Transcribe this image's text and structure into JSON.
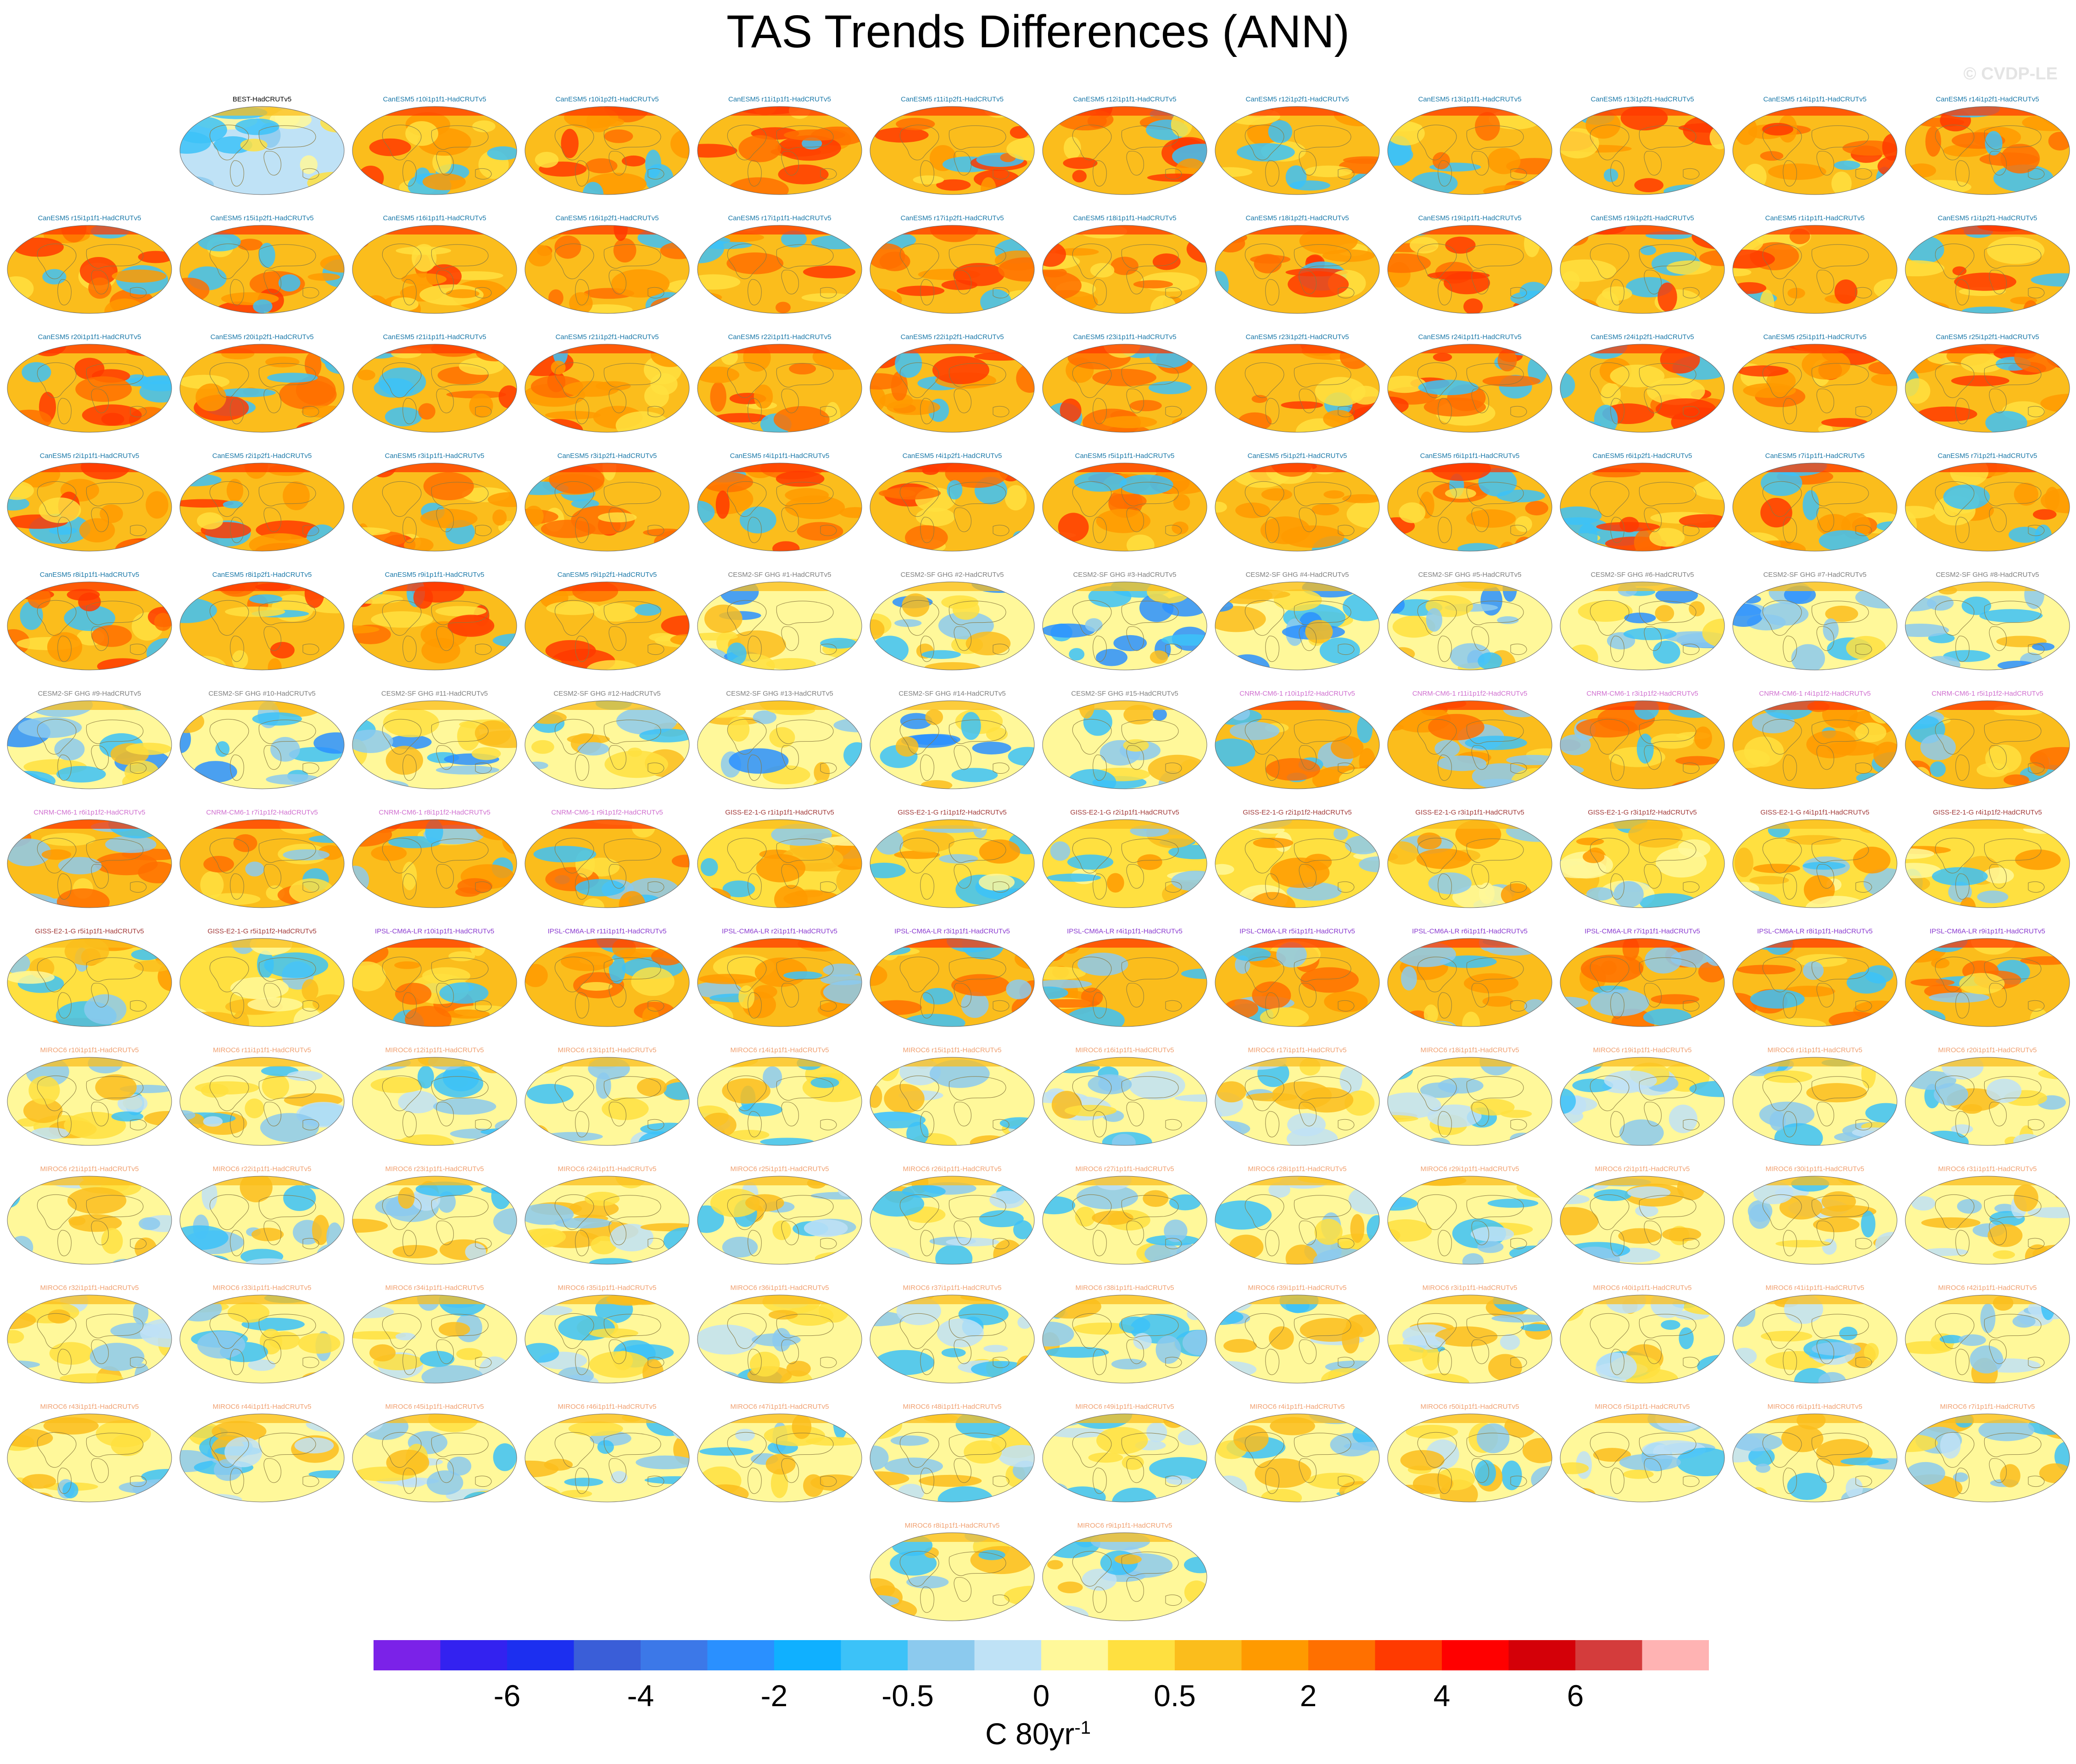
{
  "title": "TAS Trends Differences (ANN)",
  "watermark": "© CVDP-LE",
  "chart_data": {
    "type": "heatmap",
    "description_kind": "small multiples of global map panels",
    "panel_labels": [
      "BEST-HadCRUTv5",
      "CanESM5 r10i1p1f1-HadCRUTv5",
      "CanESM5 r10i1p2f1-HadCRUTv5",
      "CanESM5 r11i1p1f1-HadCRUTv5",
      "CanESM5 r11i1p2f1-HadCRUTv5",
      "CanESM5 r12i1p1f1-HadCRUTv5",
      "CanESM5 r12i1p2f1-HadCRUTv5",
      "CanESM5 r13i1p1f1-HadCRUTv5",
      "CanESM5 r13i1p2f1-HadCRUTv5",
      "CanESM5 r14i1p1f1-HadCRUTv5",
      "CanESM5 r14i1p2f1-HadCRUTv5",
      "CanESM5 r15i1p1f1-HadCRUTv5",
      "CanESM5 r15i1p2f1-HadCRUTv5",
      "CanESM5 r16i1p1f1-HadCRUTv5",
      "CanESM5 r16i1p2f1-HadCRUTv5",
      "CanESM5 r17i1p1f1-HadCRUTv5",
      "CanESM5 r17i1p2f1-HadCRUTv5",
      "CanESM5 r18i1p1f1-HadCRUTv5",
      "CanESM5 r18i1p2f1-HadCRUTv5",
      "CanESM5 r19i1p1f1-HadCRUTv5",
      "CanESM5 r19i1p2f1-HadCRUTv5",
      "CanESM5 r1i1p1f1-HadCRUTv5",
      "CanESM5 r1i1p2f1-HadCRUTv5",
      "CanESM5 r20i1p1f1-HadCRUTv5",
      "CanESM5 r20i1p2f1-HadCRUTv5",
      "CanESM5 r21i1p1f1-HadCRUTv5",
      "CanESM5 r21i1p2f1-HadCRUTv5",
      "CanESM5 r22i1p1f1-HadCRUTv5",
      "CanESM5 r22i1p2f1-HadCRUTv5",
      "CanESM5 r23i1p1f1-HadCRUTv5",
      "CanESM5 r23i1p2f1-HadCRUTv5",
      "CanESM5 r24i1p1f1-HadCRUTv5",
      "CanESM5 r24i1p2f1-HadCRUTv5",
      "CanESM5 r25i1p1f1-HadCRUTv5",
      "CanESM5 r25i1p2f1-HadCRUTv5",
      "CanESM5 r2i1p1f1-HadCRUTv5",
      "CanESM5 r2i1p2f1-HadCRUTv5",
      "CanESM5 r3i1p1f1-HadCRUTv5",
      "CanESM5 r3i1p2f1-HadCRUTv5",
      "CanESM5 r4i1p1f1-HadCRUTv5",
      "CanESM5 r4i1p2f1-HadCRUTv5",
      "CanESM5 r5i1p1f1-HadCRUTv5",
      "CanESM5 r5i1p2f1-HadCRUTv5",
      "CanESM5 r6i1p1f1-HadCRUTv5",
      "CanESM5 r6i1p2f1-HadCRUTv5",
      "CanESM5 r7i1p1f1-HadCRUTv5",
      "CanESM5 r7i1p2f1-HadCRUTv5",
      "CanESM5 r8i1p1f1-HadCRUTv5",
      "CanESM5 r8i1p2f1-HadCRUTv5",
      "CanESM5 r9i1p1f1-HadCRUTv5",
      "CanESM5 r9i1p2f1-HadCRUTv5",
      "CESM2-SF GHG #1-HadCRUTv5",
      "CESM2-SF GHG #2-HadCRUTv5",
      "CESM2-SF GHG #3-HadCRUTv5",
      "CESM2-SF GHG #4-HadCRUTv5",
      "CESM2-SF GHG #5-HadCRUTv5",
      "CESM2-SF GHG #6-HadCRUTv5",
      "CESM2-SF GHG #7-HadCRUTv5",
      "CESM2-SF GHG #8-HadCRUTv5",
      "CESM2-SF GHG #9-HadCRUTv5",
      "CESM2-SF GHG #10-HadCRUTv5",
      "CESM2-SF GHG #11-HadCRUTv5",
      "CESM2-SF GHG #12-HadCRUTv5",
      "CESM2-SF GHG #13-HadCRUTv5",
      "CESM2-SF GHG #14-HadCRUTv5",
      "CESM2-SF GHG #15-HadCRUTv5",
      "CNRM-CM6-1 r10i1p1f2-HadCRUTv5",
      "CNRM-CM6-1 r11i1p1f2-HadCRUTv5",
      "CNRM-CM6-1 r3i1p1f2-HadCRUTv5",
      "CNRM-CM6-1 r4i1p1f2-HadCRUTv5",
      "CNRM-CM6-1 r5i1p1f2-HadCRUTv5",
      "CNRM-CM6-1 r6i1p1f2-HadCRUTv5",
      "CNRM-CM6-1 r7i1p1f2-HadCRUTv5",
      "CNRM-CM6-1 r8i1p1f2-HadCRUTv5",
      "CNRM-CM6-1 r9i1p1f2-HadCRUTv5",
      "GISS-E2-1-G r1i1p1f1-HadCRUTv5",
      "GISS-E2-1-G r1i1p1f2-HadCRUTv5",
      "GISS-E2-1-G r2i1p1f1-HadCRUTv5",
      "GISS-E2-1-G r2i1p1f2-HadCRUTv5",
      "GISS-E2-1-G r3i1p1f1-HadCRUTv5",
      "GISS-E2-1-G r3i1p1f2-HadCRUTv5",
      "GISS-E2-1-G r4i1p1f1-HadCRUTv5",
      "GISS-E2-1-G r4i1p1f2-HadCRUTv5",
      "GISS-E2-1-G r5i1p1f1-HadCRUTv5",
      "GISS-E2-1-G r5i1p1f2-HadCRUTv5",
      "IPSL-CM6A-LR r10i1p1f1-HadCRUTv5",
      "IPSL-CM6A-LR r11i1p1f1-HadCRUTv5",
      "IPSL-CM6A-LR r2i1p1f1-HadCRUTv5",
      "IPSL-CM6A-LR r3i1p1f1-HadCRUTv5",
      "IPSL-CM6A-LR r4i1p1f1-HadCRUTv5",
      "IPSL-CM6A-LR r5i1p1f1-HadCRUTv5",
      "IPSL-CM6A-LR r6i1p1f1-HadCRUTv5",
      "IPSL-CM6A-LR r7i1p1f1-HadCRUTv5",
      "IPSL-CM6A-LR r8i1p1f1-HadCRUTv5",
      "IPSL-CM6A-LR r9i1p1f1-HadCRUTv5",
      "MIROC6 r10i1p1f1-HadCRUTv5",
      "MIROC6 r11i1p1f1-HadCRUTv5",
      "MIROC6 r12i1p1f1-HadCRUTv5",
      "MIROC6 r13i1p1f1-HadCRUTv5",
      "MIROC6 r14i1p1f1-HadCRUTv5",
      "MIROC6 r15i1p1f1-HadCRUTv5",
      "MIROC6 r16i1p1f1-HadCRUTv5",
      "MIROC6 r17i1p1f1-HadCRUTv5",
      "MIROC6 r18i1p1f1-HadCRUTv5",
      "MIROC6 r19i1p1f1-HadCRUTv5",
      "MIROC6 r1i1p1f1-HadCRUTv5",
      "MIROC6 r20i1p1f1-HadCRUTv5",
      "MIROC6 r21i1p1f1-HadCRUTv5",
      "MIROC6 r22i1p1f1-HadCRUTv5",
      "MIROC6 r23i1p1f1-HadCRUTv5",
      "MIROC6 r24i1p1f1-HadCRUTv5",
      "MIROC6 r25i1p1f1-HadCRUTv5",
      "MIROC6 r26i1p1f1-HadCRUTv5",
      "MIROC6 r27i1p1f1-HadCRUTv5",
      "MIROC6 r28i1p1f1-HadCRUTv5",
      "MIROC6 r29i1p1f1-HadCRUTv5",
      "MIROC6 r2i1p1f1-HadCRUTv5",
      "MIROC6 r30i1p1f1-HadCRUTv5",
      "MIROC6 r31i1p1f1-HadCRUTv5",
      "MIROC6 r32i1p1f1-HadCRUTv5",
      "MIROC6 r33i1p1f1-HadCRUTv5",
      "MIROC6 r34i1p1f1-HadCRUTv5",
      "MIROC6 r35i1p1f1-HadCRUTv5",
      "MIROC6 r36i1p1f1-HadCRUTv5",
      "MIROC6 r37i1p1f1-HadCRUTv5",
      "MIROC6 r38i1p1f1-HadCRUTv5",
      "MIROC6 r39i1p1f1-HadCRUTv5",
      "MIROC6 r3i1p1f1-HadCRUTv5",
      "MIROC6 r40i1p1f1-HadCRUTv5",
      "MIROC6 r41i1p1f1-HadCRUTv5",
      "MIROC6 r42i1p1f1-HadCRUTv5",
      "MIROC6 r43i1p1f1-HadCRUTv5",
      "MIROC6 r44i1p1f1-HadCRUTv5",
      "MIROC6 r45i1p1f1-HadCRUTv5",
      "MIROC6 r46i1p1f1-HadCRUTv5",
      "MIROC6 r47i1p1f1-HadCRUTv5",
      "MIROC6 r48i1p1f1-HadCRUTv5",
      "MIROC6 r49i1p1f1-HadCRUTv5",
      "MIROC6 r4i1p1f1-HadCRUTv5",
      "MIROC6 r50i1p1f1-HadCRUTv5",
      "MIROC6 r5i1p1f1-HadCRUTv5",
      "MIROC6 r6i1p1f1-HadCRUTv5",
      "MIROC6 r7i1p1f1-HadCRUTv5",
      "MIROC6 r8i1p1f1-HadCRUTv5",
      "MIROC6 r9i1p1f1-HadCRUTv5"
    ],
    "model_label_colors": {
      "BEST": "#000000",
      "CanESM5": "#1a78a8",
      "CESM2-SF GHG": "#7f7f7f",
      "CNRM-CM6-1": "#d070d0",
      "GISS-E2-1-G": "#a23a3a",
      "IPSL-CM6A-LR": "#8a3ad0",
      "MIROC6": "#f0a070"
    },
    "colorbar": {
      "colors": [
        "#7b22e8",
        "#3322f0",
        "#1c2ff0",
        "#3a5ed8",
        "#3c78e8",
        "#2a90ff",
        "#10b0ff",
        "#3cc2f8",
        "#8ccaee",
        "#bfe2f6",
        "#fff89a",
        "#ffe040",
        "#fbbd1c",
        "#ff9a00",
        "#ff7000",
        "#ff3a00",
        "#ff0000",
        "#d40008",
        "#d43c3c",
        "#ffb3b3"
      ],
      "tick_labels": [
        "-6",
        "-4",
        "-2",
        "-0.5",
        "0",
        "0.5",
        "2",
        "4",
        "6"
      ],
      "unit": "C 80yr",
      "unit_exponent": "-1"
    }
  }
}
